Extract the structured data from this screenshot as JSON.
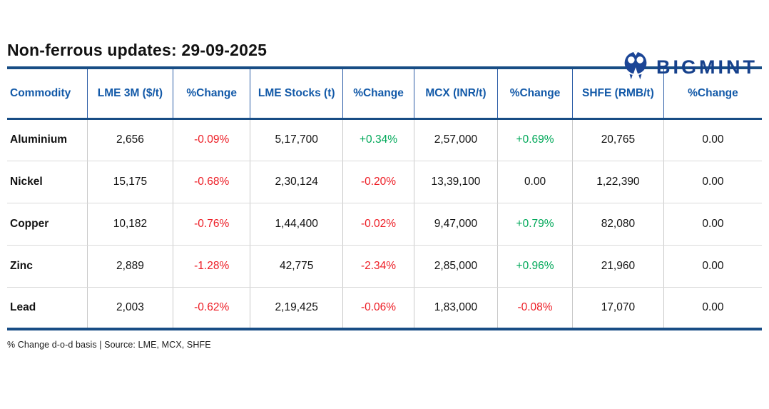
{
  "brand": {
    "name": "BIGMINT"
  },
  "header": {
    "title": "Non-ferrous updates: 29-09-2025"
  },
  "footnote": "% Change d-o-d basis | Source: LME, MCX, SHFE",
  "colors": {
    "border_navy": "#184d85",
    "header_blue": "#1259a8",
    "negative_red": "#ed1c24",
    "positive_green": "#00a859",
    "brand_blue": "#16418c"
  },
  "chart_data": {
    "type": "table",
    "title": "Non-ferrous updates: 29-09-2025",
    "columns": [
      "Commodity",
      "LME 3M ($/t)",
      "%Change",
      "LME Stocks (t)",
      "%Change",
      "MCX (INR/t)",
      "%Change",
      "SHFE (RMB/t)",
      "%Change"
    ],
    "rows": [
      {
        "cells": [
          {
            "text": "Aluminium"
          },
          {
            "text": "2,656"
          },
          {
            "text": "-0.09%",
            "trend": "down"
          },
          {
            "text": "5,17,700"
          },
          {
            "text": "+0.34%",
            "trend": "up"
          },
          {
            "text": "2,57,000"
          },
          {
            "text": "+0.69%",
            "trend": "up"
          },
          {
            "text": "20,765"
          },
          {
            "text": "0.00"
          }
        ]
      },
      {
        "cells": [
          {
            "text": "Nickel"
          },
          {
            "text": "15,175"
          },
          {
            "text": "-0.68%",
            "trend": "down"
          },
          {
            "text": "2,30,124"
          },
          {
            "text": "-0.20%",
            "trend": "down"
          },
          {
            "text": "13,39,100"
          },
          {
            "text": "0.00"
          },
          {
            "text": "1,22,390"
          },
          {
            "text": "0.00"
          }
        ]
      },
      {
        "cells": [
          {
            "text": "Copper"
          },
          {
            "text": "10,182"
          },
          {
            "text": "-0.76%",
            "trend": "down"
          },
          {
            "text": "1,44,400"
          },
          {
            "text": "-0.02%",
            "trend": "down"
          },
          {
            "text": "9,47,000"
          },
          {
            "text": "+0.79%",
            "trend": "up"
          },
          {
            "text": "82,080"
          },
          {
            "text": "0.00"
          }
        ]
      },
      {
        "cells": [
          {
            "text": "Zinc"
          },
          {
            "text": "2,889"
          },
          {
            "text": "-1.28%",
            "trend": "down"
          },
          {
            "text": "42,775"
          },
          {
            "text": "-2.34%",
            "trend": "down"
          },
          {
            "text": "2,85,000"
          },
          {
            "text": "+0.96%",
            "trend": "up"
          },
          {
            "text": "21,960"
          },
          {
            "text": "0.00"
          }
        ]
      },
      {
        "cells": [
          {
            "text": "Lead"
          },
          {
            "text": "2,003"
          },
          {
            "text": "-0.62%",
            "trend": "down"
          },
          {
            "text": "2,19,425"
          },
          {
            "text": "-0.06%",
            "trend": "down"
          },
          {
            "text": "1,83,000"
          },
          {
            "text": "-0.08%",
            "trend": "down"
          },
          {
            "text": "17,070"
          },
          {
            "text": "0.00"
          }
        ]
      }
    ],
    "column_widths_pct": [
      10.6,
      11.4,
      10.2,
      12.3,
      9.4,
      11.1,
      9.9,
      12.1,
      13.0
    ]
  }
}
